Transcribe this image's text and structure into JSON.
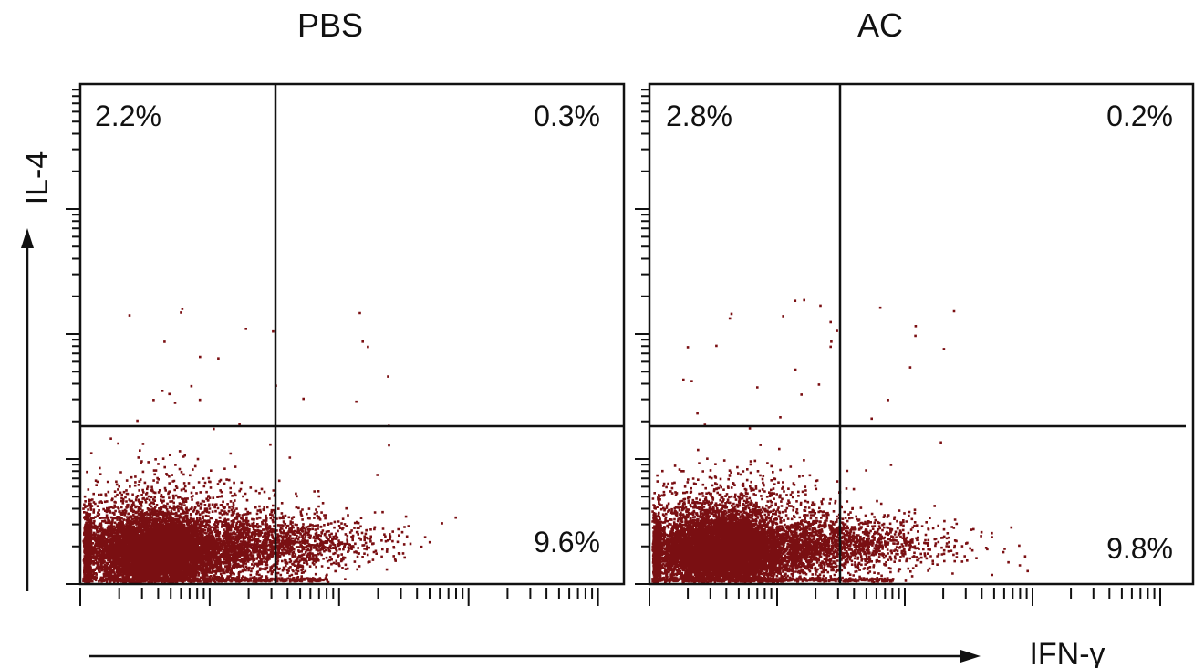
{
  "figure": {
    "x_axis_label": "IFN-γ",
    "y_axis_label": "IL-4"
  },
  "colors": {
    "dots": "#7a0f12",
    "lines": "#111111",
    "background": "#ffffff"
  },
  "chart_data": [
    {
      "type": "scatter",
      "title": "PBS",
      "xlabel": "",
      "ylabel": "",
      "xscale": "log",
      "yscale": "log",
      "grid": false,
      "quadrant_percentages": {
        "upper_left": "2.2%",
        "upper_right": "0.3%",
        "lower_left": "",
        "lower_right": "9.6%"
      },
      "quadrant_values_percent": {
        "upper_left": 2.2,
        "upper_right": 0.3,
        "lower_right": 9.6
      },
      "population": {
        "main_center_x_decades": 0.6,
        "main_center_y_decades": 0.27,
        "spread_x": 0.14,
        "spread_y": 0.09
      },
      "gate_x_decades": 1.1,
      "gate_y_decades": 0.56
    },
    {
      "type": "scatter",
      "title": "AC",
      "xlabel": "",
      "ylabel": "",
      "xscale": "log",
      "yscale": "log",
      "grid": false,
      "quadrant_percentages": {
        "upper_left": "2.8%",
        "upper_right": "0.2%",
        "lower_left": "",
        "lower_right": "9.8%"
      },
      "quadrant_values_percent": {
        "upper_left": 2.8,
        "upper_right": 0.2,
        "lower_right": 9.8
      },
      "population": {
        "main_center_x_decades": 0.58,
        "main_center_y_decades": 0.28,
        "spread_x": 0.14,
        "spread_y": 0.09
      },
      "gate_x_decades": 1.1,
      "gate_y_decades": 0.56
    }
  ]
}
